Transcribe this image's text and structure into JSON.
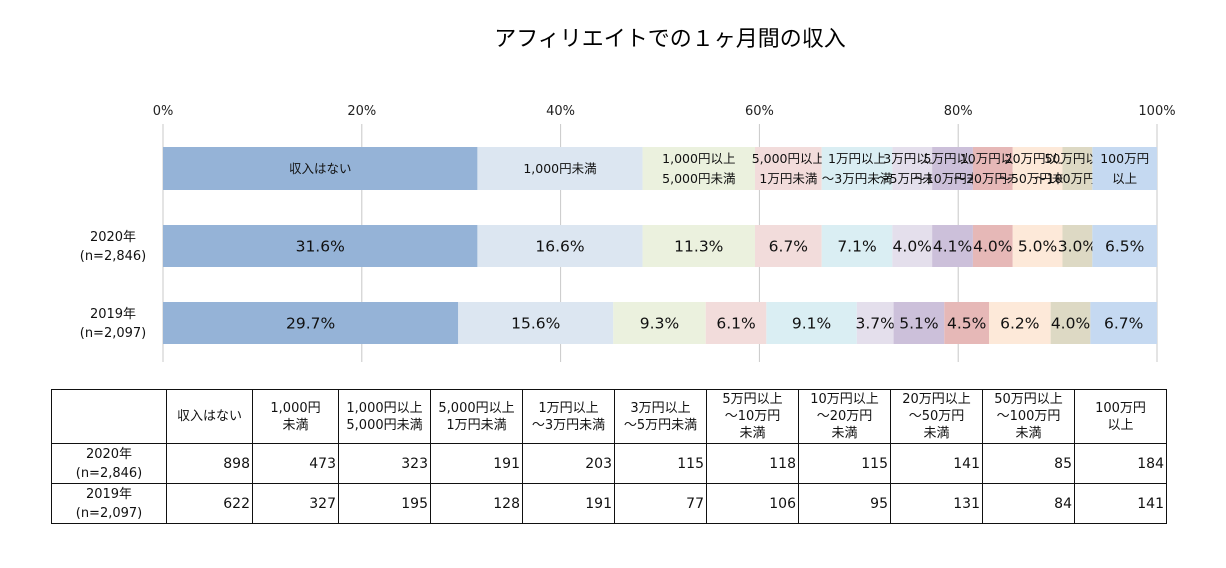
{
  "chart_data": {
    "type": "stacked-bar-horizontal-100",
    "title": "アフィリエイトでの１ヶ月間の収入",
    "x_ticks": [
      "0%",
      "20%",
      "40%",
      "60%",
      "80%",
      "100%"
    ],
    "xlim": [
      0,
      100
    ],
    "grid": true,
    "legend_position": "top",
    "categories": [
      {
        "label": "収入はない",
        "color": "#95b3d7"
      },
      {
        "label": "1,000円未満",
        "color": "#dce6f1"
      },
      {
        "label": "1,000円以上\n5,000円未満",
        "color": "#ebf1de"
      },
      {
        "label": "5,000円以上\n1万円未満",
        "color": "#f2dcdb"
      },
      {
        "label": "1万円以上\n～3万円未満",
        "color": "#daeef3"
      },
      {
        "label": "3万円以上\n～5万円未満",
        "color": "#e4dfec"
      },
      {
        "label": "5万円以上\n～10万円未満",
        "color": "#ccc0da"
      },
      {
        "label": "10万円以上\n～20万円未満",
        "color": "#e6b8b7"
      },
      {
        "label": "20万円以上\n～50万円未満",
        "color": "#fde9d9"
      },
      {
        "label": "50万円以上\n～100万円未満",
        "color": "#ddd9c4"
      },
      {
        "label": "100万円\n以上",
        "color": "#c5d9f1"
      }
    ],
    "series": [
      {
        "label": "2020年\n(n=2,846)",
        "values": [
          31.6,
          16.6,
          11.3,
          6.7,
          7.1,
          4.0,
          4.1,
          4.0,
          5.0,
          3.0,
          6.5
        ],
        "labels": [
          "31.6%",
          "16.6%",
          "11.3%",
          "6.7%",
          "7.1%",
          "4.0%",
          "4.1%",
          "4.0%",
          "5.0%",
          "3.0%",
          "6.5%"
        ]
      },
      {
        "label": "2019年\n(n=2,097)",
        "values": [
          29.7,
          15.6,
          9.3,
          6.1,
          9.1,
          3.7,
          5.1,
          4.5,
          6.2,
          4.0,
          6.7
        ],
        "labels": [
          "29.7%",
          "15.6%",
          "9.3%",
          "6.1%",
          "9.1%",
          "3.7%",
          "5.1%",
          "4.5%",
          "6.2%",
          "4.0%",
          "6.7%"
        ]
      }
    ]
  },
  "table": {
    "headers": [
      "",
      "収入はない",
      "1,000円\n未満",
      "1,000円以上\n5,000円未満",
      "5,000円以上\n1万円未満",
      "1万円以上\n～3万円未満",
      "3万円以上\n～5万円未満",
      "5万円以上\n～10万円\n未満",
      "10万円以上\n～20万円\n未満",
      "20万円以上\n～50万円\n未満",
      "50万円以上\n～100万円\n未満",
      "100万円\n以上"
    ],
    "rows": [
      {
        "label": "2020年\n(n=2,846)",
        "cells": [
          "898",
          "473",
          "323",
          "191",
          "203",
          "115",
          "118",
          "115",
          "141",
          "85",
          "184"
        ]
      },
      {
        "label": "2019年\n(n=2,097)",
        "cells": [
          "622",
          "327",
          "195",
          "128",
          "191",
          "77",
          "106",
          "95",
          "131",
          "84",
          "141"
        ]
      }
    ]
  }
}
